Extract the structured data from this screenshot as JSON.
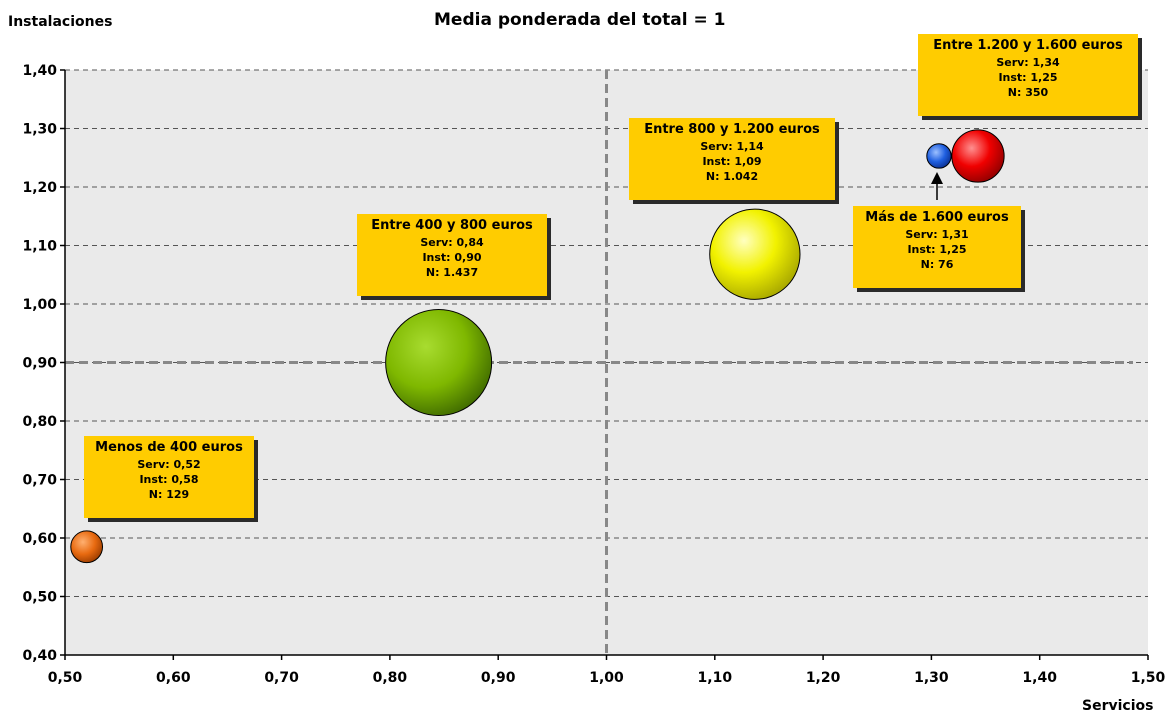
{
  "chart_data": {
    "type": "scatter",
    "title": "Media ponderada del total = 1",
    "xlabel": "Servicios",
    "ylabel": "Instalaciones",
    "xlim": [
      0.5,
      1.5
    ],
    "ylim": [
      0.4,
      1.4
    ],
    "x_ticks": [
      "0,50",
      "0,60",
      "0,70",
      "0,80",
      "0,90",
      "1,00",
      "1,10",
      "1,20",
      "1,30",
      "1,40",
      "1,50"
    ],
    "y_ticks": [
      "0,40",
      "0,50",
      "0,60",
      "0,70",
      "0,80",
      "0,90",
      "1,00",
      "1,10",
      "1,20",
      "1,30",
      "1,40"
    ],
    "grid": true,
    "reference_lines": {
      "x": 1.0,
      "y": 0.9
    },
    "series": [
      {
        "label": "Menos de 400 euros",
        "x": 0.52,
        "y": 0.585,
        "n": 129,
        "color": "#e86a10",
        "serv": "Serv: 0,52",
        "inst": "Inst: 0,58",
        "ntext": "N: 129"
      },
      {
        "label": "Entre 400 y 800 euros",
        "x": 0.845,
        "y": 0.9,
        "n": 1437,
        "color": "#7fb800",
        "serv": "Serv: 0,84",
        "inst": "Inst: 0,90",
        "ntext": "N: 1.437"
      },
      {
        "label": "Entre 800 y 1.200 euros",
        "x": 1.137,
        "y": 1.085,
        "n": 1042,
        "color": "#f2f200",
        "serv": "Serv: 1,14",
        "inst": "Inst: 1,09",
        "ntext": "N: 1.042"
      },
      {
        "label": "Entre 1.200 y 1.600 euros",
        "x": 1.343,
        "y": 1.253,
        "n": 350,
        "color": "#f00000",
        "serv": "Serv: 1,34",
        "inst": "Inst: 1,25",
        "ntext": "N: 350"
      },
      {
        "label": "Más de 1.600 euros",
        "x": 1.307,
        "y": 1.253,
        "n": 76,
        "color": "#1f5fe0",
        "serv": "Serv: 1,31",
        "inst": "Inst: 1,25",
        "ntext": "N: 76"
      }
    ]
  }
}
